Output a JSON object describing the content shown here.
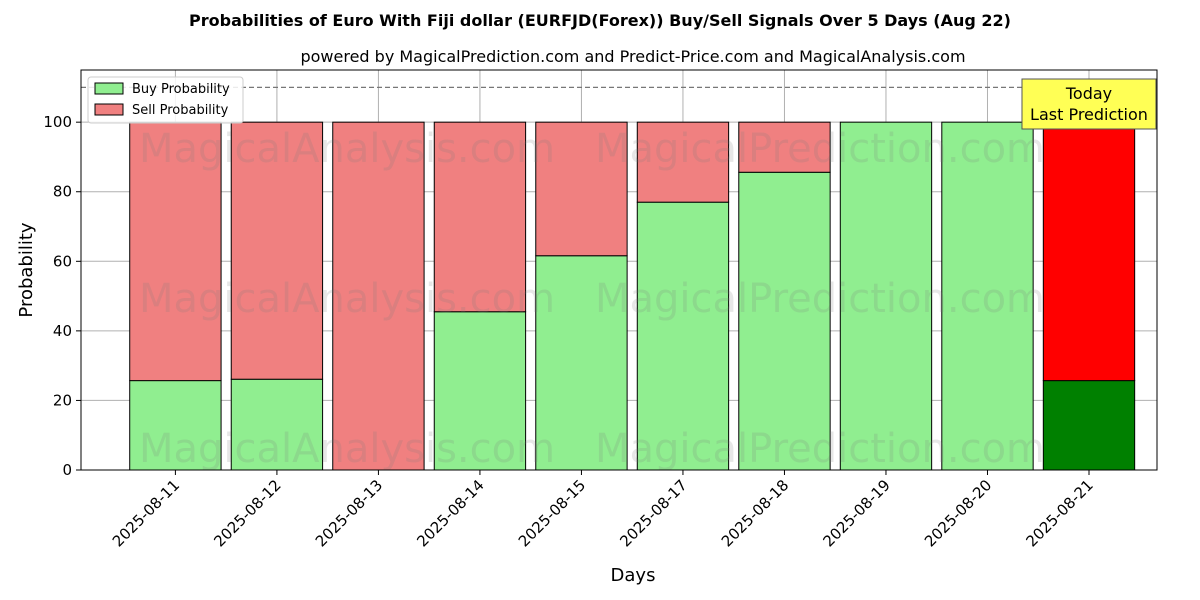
{
  "chart_data": {
    "type": "bar",
    "stacked": true,
    "title": "Probabilities of Euro With Fiji dollar (EURFJD(Forex)) Buy/Sell Signals Over 5 Days (Aug 22)",
    "subtitle": "powered by MagicalPrediction.com and Predict-Price.com and MagicalAnalysis.com",
    "xlabel": "Days",
    "ylabel": "Probability",
    "ylim": [
      0,
      115
    ],
    "yticks": [
      0,
      20,
      40,
      60,
      80,
      100
    ],
    "grid": true,
    "legend_position": "top-left",
    "reference_line": 110,
    "categories": [
      "2025-08-11",
      "2025-08-12",
      "2025-08-13",
      "2025-08-14",
      "2025-08-15",
      "2025-08-17",
      "2025-08-18",
      "2025-08-19",
      "2025-08-20",
      "2025-08-21"
    ],
    "series": [
      {
        "name": "Buy Probability",
        "color": "#90ee90",
        "highlight_color": "#008000",
        "values": [
          25.7,
          26.1,
          0,
          45.5,
          61.6,
          77.0,
          85.6,
          100,
          100,
          25.7
        ]
      },
      {
        "name": "Sell Probability",
        "color": "#f08080",
        "highlight_color": "#ff0000",
        "values": [
          74.3,
          73.9,
          100,
          54.5,
          38.4,
          23.0,
          14.4,
          0,
          0,
          74.3
        ]
      }
    ],
    "highlight_index": 9,
    "annotation": {
      "lines": [
        "Today",
        "Last Prediction"
      ],
      "background": "#ffff55"
    },
    "watermarks": [
      "MagicalAnalysis.com",
      "MagicalPrediction.com"
    ]
  }
}
